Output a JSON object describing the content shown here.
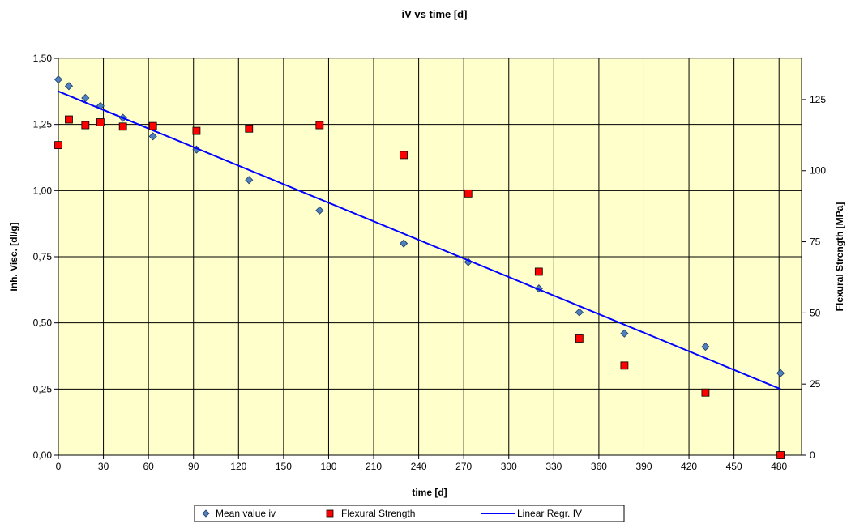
{
  "chart_data": {
    "type": "scatter",
    "title": "iV vs time [d]",
    "xlabel": "time [d]",
    "ylabel": "Inh. Visc. [dl/g]",
    "y2label": "Flexural Strength [MPa]",
    "xlim": [
      0,
      495
    ],
    "ylim": [
      0,
      1.5
    ],
    "y2lim": [
      0,
      139.5
    ],
    "x_ticks": [
      0,
      30,
      60,
      90,
      120,
      150,
      180,
      210,
      240,
      270,
      300,
      330,
      360,
      390,
      420,
      450,
      480
    ],
    "x_tick_labels": [
      "0",
      "30",
      "60",
      "90",
      "120",
      "150",
      "180",
      "210",
      "240",
      "270",
      "300",
      "330",
      "360",
      "390",
      "420",
      "450",
      "480"
    ],
    "y_ticks": [
      0,
      0.25,
      0.5,
      0.75,
      1.0,
      1.25,
      1.5
    ],
    "y_tick_labels": [
      "0,00",
      "0,25",
      "0,50",
      "0,75",
      "1,00",
      "1,25",
      "1,50"
    ],
    "y2_ticks": [
      0,
      25,
      50,
      75,
      100,
      125
    ],
    "y2_tick_labels": [
      "0",
      "25",
      "50",
      "75",
      "100",
      "125"
    ],
    "grid": true,
    "plot_background": "#ffffcc",
    "legend_position": "bottom",
    "series": [
      {
        "name": "Mean value iv",
        "marker": "diamond",
        "color": "#4f81bd",
        "axis": "left",
        "x": [
          0,
          7,
          18,
          28,
          43,
          63,
          92,
          127,
          174,
          230,
          273,
          320,
          347,
          377,
          431,
          481
        ],
        "y": [
          1.42,
          1.395,
          1.35,
          1.32,
          1.275,
          1.205,
          1.155,
          1.04,
          0.925,
          0.8,
          0.73,
          0.63,
          0.54,
          0.46,
          0.41,
          0.31
        ]
      },
      {
        "name": "Flexural Strength",
        "marker": "square",
        "color": "#ff0000",
        "axis": "right",
        "x": [
          0,
          7,
          18,
          28,
          43,
          63,
          92,
          127,
          174,
          230,
          273,
          320,
          347,
          377,
          431,
          481
        ],
        "y": [
          109,
          118,
          116,
          117,
          115.5,
          115.7,
          114,
          114.8,
          116,
          105.5,
          92,
          64.5,
          41,
          31.5,
          22,
          0
        ]
      },
      {
        "name": "Linear Regr. IV",
        "type": "line",
        "color": "#0000ff",
        "axis": "left",
        "x": [
          0,
          481
        ],
        "y": [
          1.375,
          0.25
        ]
      }
    ]
  }
}
